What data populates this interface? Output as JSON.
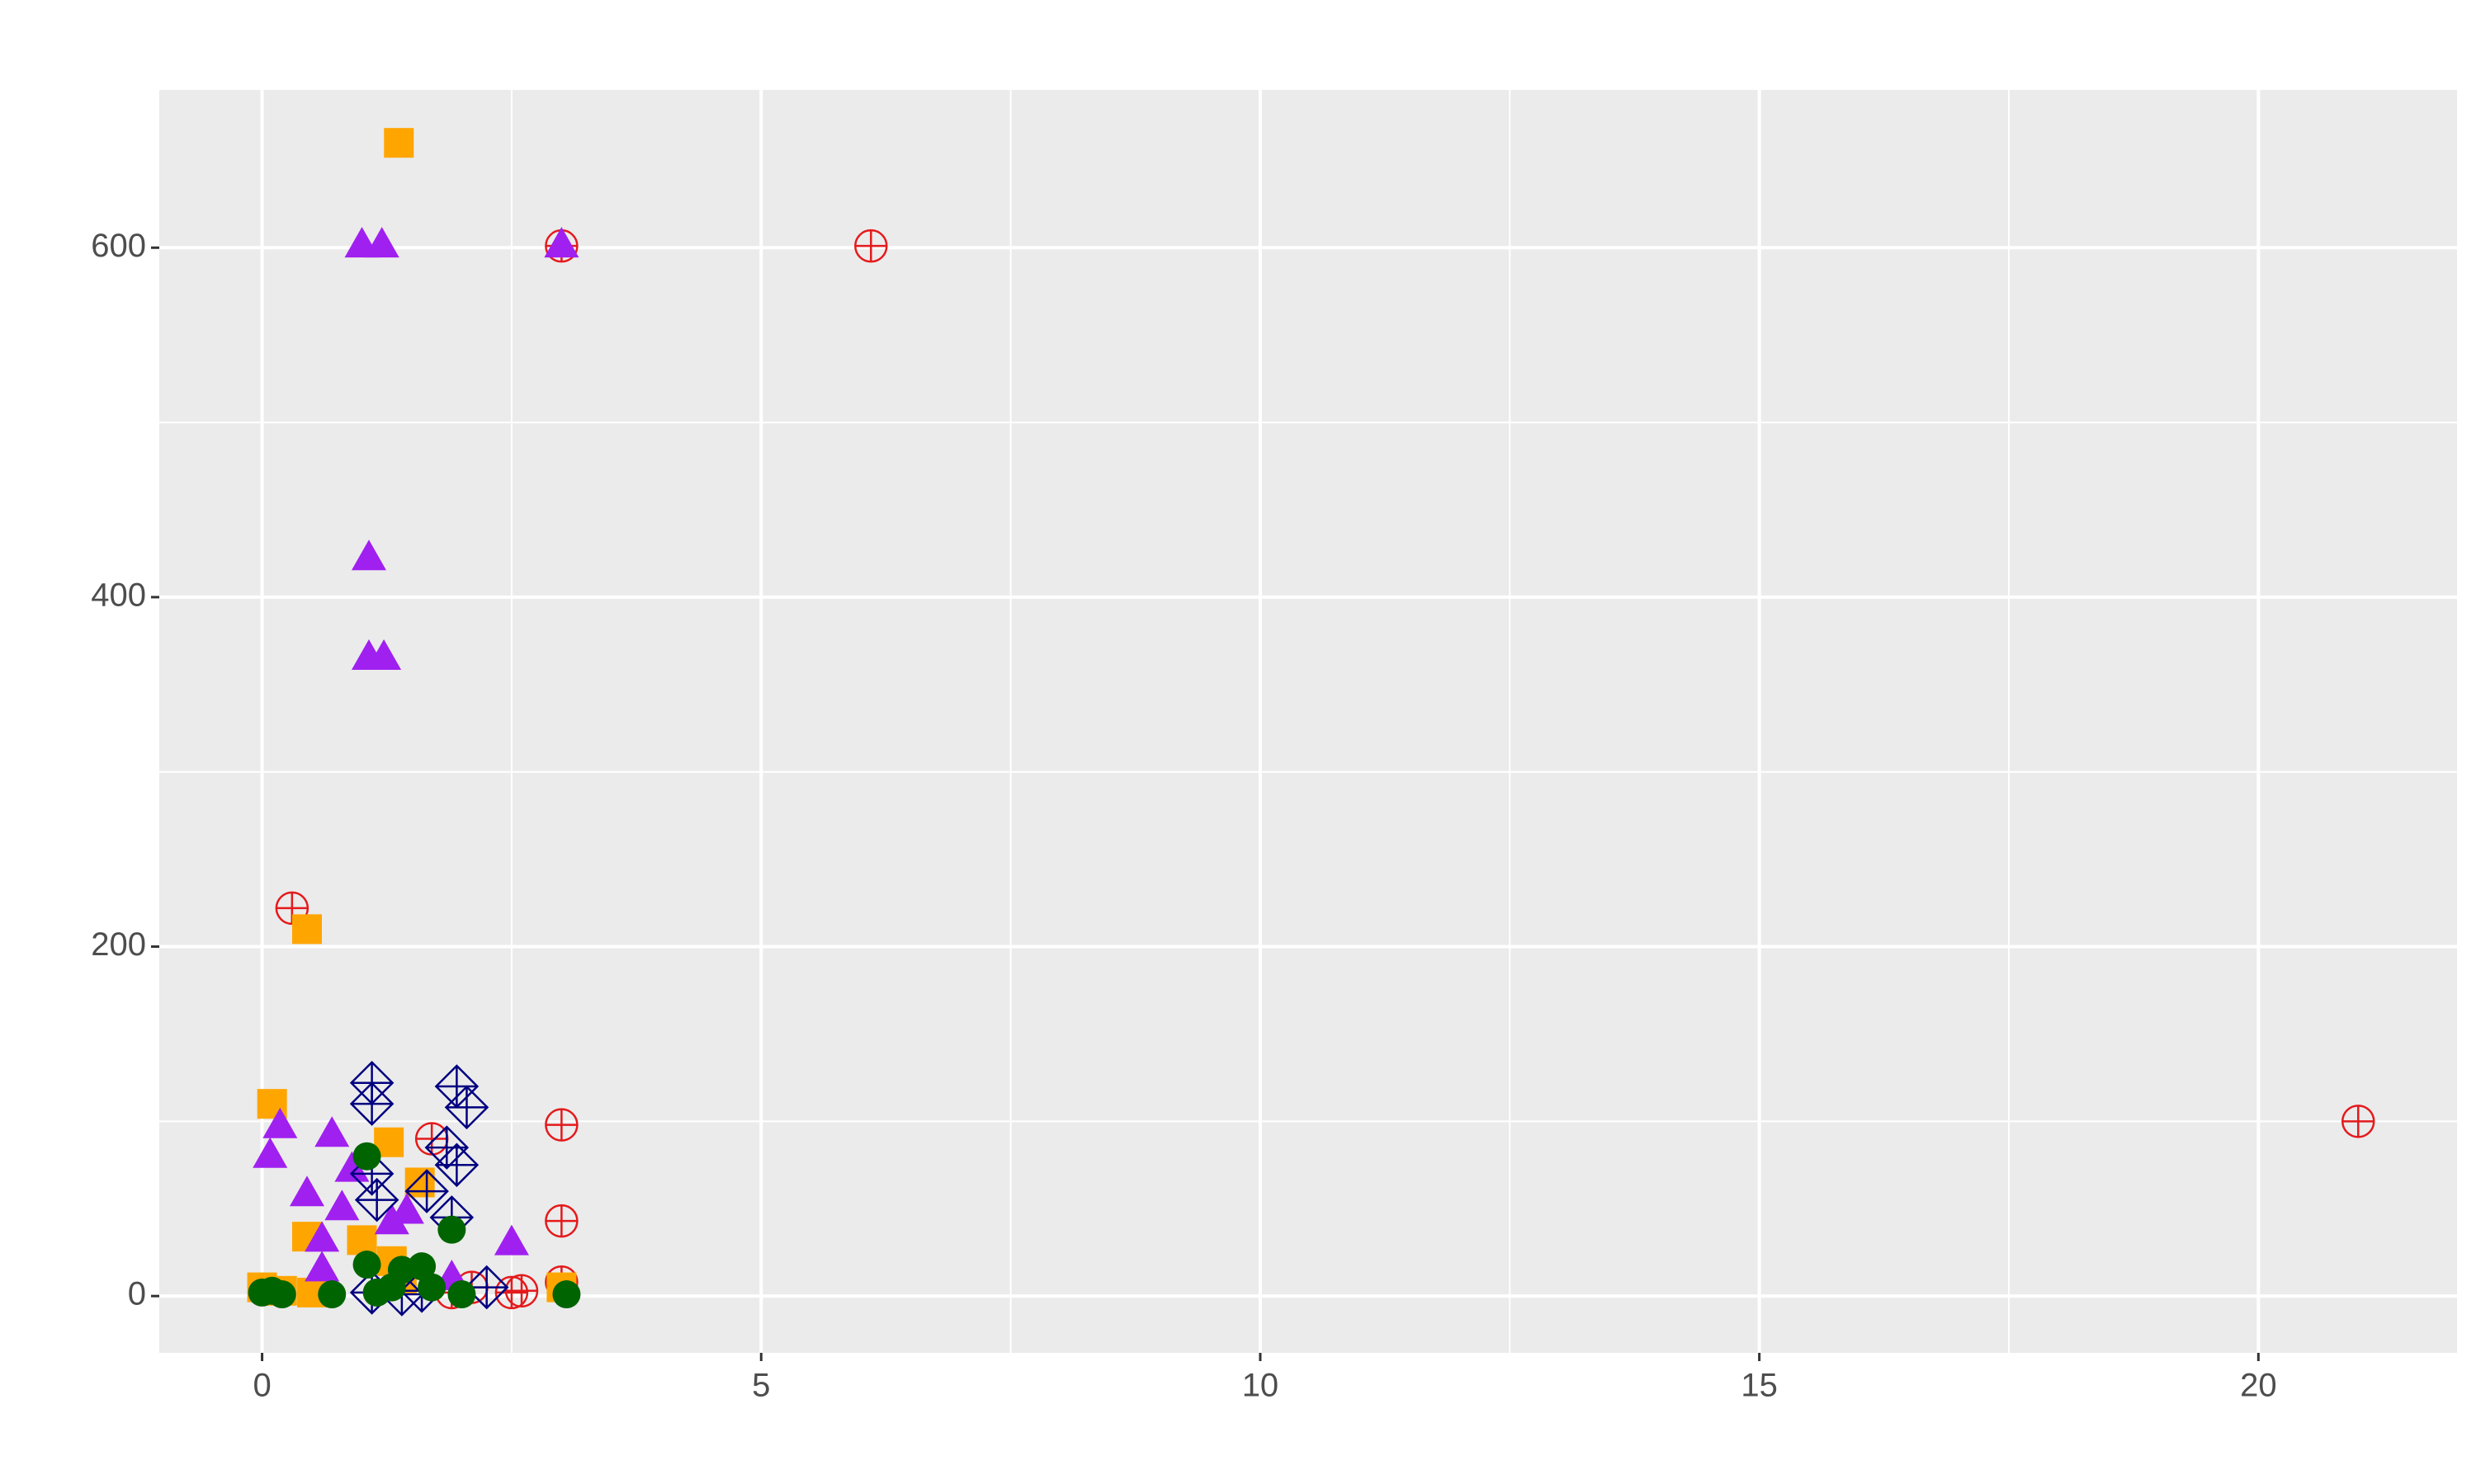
{
  "chart_data": {
    "type": "scatter",
    "xlim": [
      -1.03,
      21.99
    ],
    "ylim": [
      -32.5,
      690.3
    ],
    "xticks": [
      0,
      5,
      10,
      15,
      20
    ],
    "yticks": [
      0,
      200,
      400,
      600
    ],
    "x_minor_ticks": [
      2.5,
      7.5,
      12.5,
      17.5
    ],
    "y_minor_ticks": [
      100,
      300,
      500
    ],
    "grid": true,
    "series": [
      {
        "color": "#e41a1c",
        "shape": "circle-plus",
        "x": [
          0.3,
          3.0,
          6.1,
          21,
          3.0,
          3.0,
          1.7,
          3.0,
          2.5,
          2.6,
          1.9,
          2.1
        ],
        "values": [
          222,
          601,
          601,
          100,
          98,
          43,
          90,
          8,
          2,
          3,
          2,
          5
        ]
      },
      {
        "color": "#ffa500",
        "shape": "square",
        "x": [
          1.37,
          0.45,
          0.1,
          1.27,
          1.58,
          0.45,
          1.0,
          1.3,
          0,
          0.2,
          0.5,
          3.0,
          1.4
        ],
        "values": [
          660,
          210,
          110,
          88,
          65,
          34,
          32,
          20,
          5,
          3,
          2,
          5,
          10
        ]
      },
      {
        "color": "#a020f0",
        "shape": "triangle",
        "x": [
          1.0,
          1.2,
          3.0,
          1.07,
          1.07,
          1.22,
          0.18,
          0.08,
          0.7,
          0.45,
          0.9,
          0.8,
          1.3,
          1.45,
          2.5,
          0.6,
          1.9,
          0.6
        ],
        "values": [
          601,
          601,
          601,
          422,
          365,
          365,
          97,
          80,
          92,
          58,
          72,
          50,
          42,
          48,
          30,
          15,
          10,
          32
        ]
      },
      {
        "color": "#000080",
        "shape": "diamond-plus",
        "x": [
          1.1,
          1.1,
          1.95,
          2.05,
          1.85,
          1.95,
          1.1,
          1.15,
          1.65,
          1.9,
          2.25,
          1.1,
          1.4,
          1.6
        ],
        "values": [
          122,
          110,
          120,
          108,
          85,
          75,
          70,
          55,
          60,
          45,
          5,
          2,
          1,
          3
        ]
      },
      {
        "color": "#006400",
        "shape": "circle",
        "x": [
          1.05,
          1.9,
          0,
          0.1,
          0.2,
          0.7,
          1.05,
          1.15,
          1.4,
          1.6,
          1.7,
          2.0,
          3.05,
          1.3
        ],
        "values": [
          80,
          38,
          2,
          3,
          1,
          1,
          18,
          2,
          15,
          17,
          5,
          1,
          1,
          5
        ]
      }
    ]
  }
}
